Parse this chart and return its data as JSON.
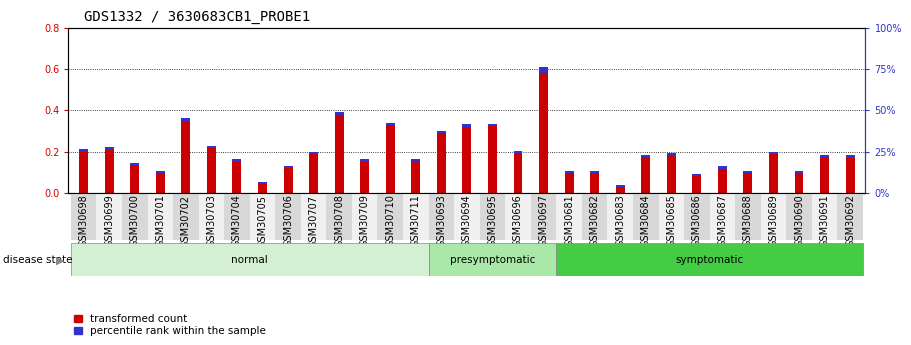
{
  "title": "GDS1332 / 3630683CB1_PROBE1",
  "samples": [
    "GSM30698",
    "GSM30699",
    "GSM30700",
    "GSM30701",
    "GSM30702",
    "GSM30703",
    "GSM30704",
    "GSM30705",
    "GSM30706",
    "GSM30707",
    "GSM30708",
    "GSM30709",
    "GSM30710",
    "GSM30711",
    "GSM30693",
    "GSM30694",
    "GSM30695",
    "GSM30696",
    "GSM30697",
    "GSM30681",
    "GSM30682",
    "GSM30683",
    "GSM30684",
    "GSM30685",
    "GSM30686",
    "GSM30687",
    "GSM30688",
    "GSM30689",
    "GSM30690",
    "GSM30691",
    "GSM30692"
  ],
  "red_values": [
    0.215,
    0.225,
    0.148,
    0.108,
    0.365,
    0.23,
    0.165,
    0.055,
    0.13,
    0.2,
    0.39,
    0.165,
    0.34,
    0.165,
    0.3,
    0.335,
    0.335,
    0.205,
    0.61,
    0.108,
    0.108,
    0.04,
    0.185,
    0.195,
    0.095,
    0.13,
    0.108,
    0.2,
    0.108,
    0.185,
    0.185
  ],
  "blue_values": [
    0.016,
    0.016,
    0.012,
    0.012,
    0.014,
    0.012,
    0.012,
    0.01,
    0.01,
    0.012,
    0.012,
    0.012,
    0.012,
    0.01,
    0.01,
    0.014,
    0.012,
    0.012,
    0.03,
    0.01,
    0.01,
    0.01,
    0.01,
    0.014,
    0.012,
    0.012,
    0.01,
    0.01,
    0.01,
    0.012,
    0.014
  ],
  "groups": [
    {
      "label": "normal",
      "start": 0,
      "end": 14,
      "color": "#d4f0d4"
    },
    {
      "label": "presymptomatic",
      "start": 14,
      "end": 19,
      "color": "#aae8aa"
    },
    {
      "label": "symptomatic",
      "start": 19,
      "end": 31,
      "color": "#44cc44"
    }
  ],
  "ylim_left": [
    0,
    0.8
  ],
  "ylim_right": [
    0,
    100
  ],
  "yticks_left": [
    0,
    0.2,
    0.4,
    0.6,
    0.8
  ],
  "yticks_right": [
    0,
    25,
    50,
    75,
    100
  ],
  "red_color": "#cc0000",
  "blue_color": "#3333cc",
  "bar_width": 0.35,
  "grid_color": "black",
  "plot_bg": "#ffffff",
  "fig_bg": "#ffffff",
  "title_fontsize": 10,
  "tick_fontsize": 7,
  "label_fontsize": 8,
  "disease_state_label": "disease state",
  "legend_items": [
    "transformed count",
    "percentile rank within the sample"
  ],
  "xticklabel_bg_odd": "#d8d8d8",
  "xticklabel_bg_even": "#f0f0f0"
}
